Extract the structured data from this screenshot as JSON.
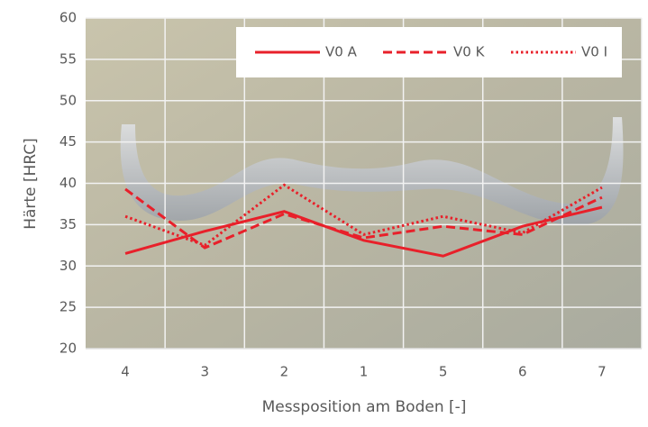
{
  "chart_data": {
    "type": "line",
    "x_label": "Messposition am Boden [-]",
    "y_label": "Härte [HRC]",
    "categories": [
      "4",
      "3",
      "2",
      "1",
      "5",
      "6",
      "7"
    ],
    "series": [
      {
        "name": "V0 A",
        "color": "#e8202a",
        "dash": "solid",
        "values": [
          31.5,
          34.2,
          36.6,
          33.1,
          31.2,
          34.8,
          37.1
        ]
      },
      {
        "name": "V0 K",
        "color": "#e8202a",
        "dash": "dashed",
        "values": [
          39.3,
          32.2,
          36.3,
          33.4,
          34.8,
          33.8,
          38.3
        ]
      },
      {
        "name": "V0 I",
        "color": "#e8202a",
        "dash": "dotted",
        "values": [
          36,
          32.5,
          39.8,
          33.8,
          36,
          34,
          39.5
        ]
      }
    ],
    "ylim": [
      20,
      60
    ],
    "yticks": [
      20,
      25,
      30,
      35,
      40,
      45,
      50,
      55,
      60
    ],
    "grid": true,
    "legend": "top-right"
  }
}
